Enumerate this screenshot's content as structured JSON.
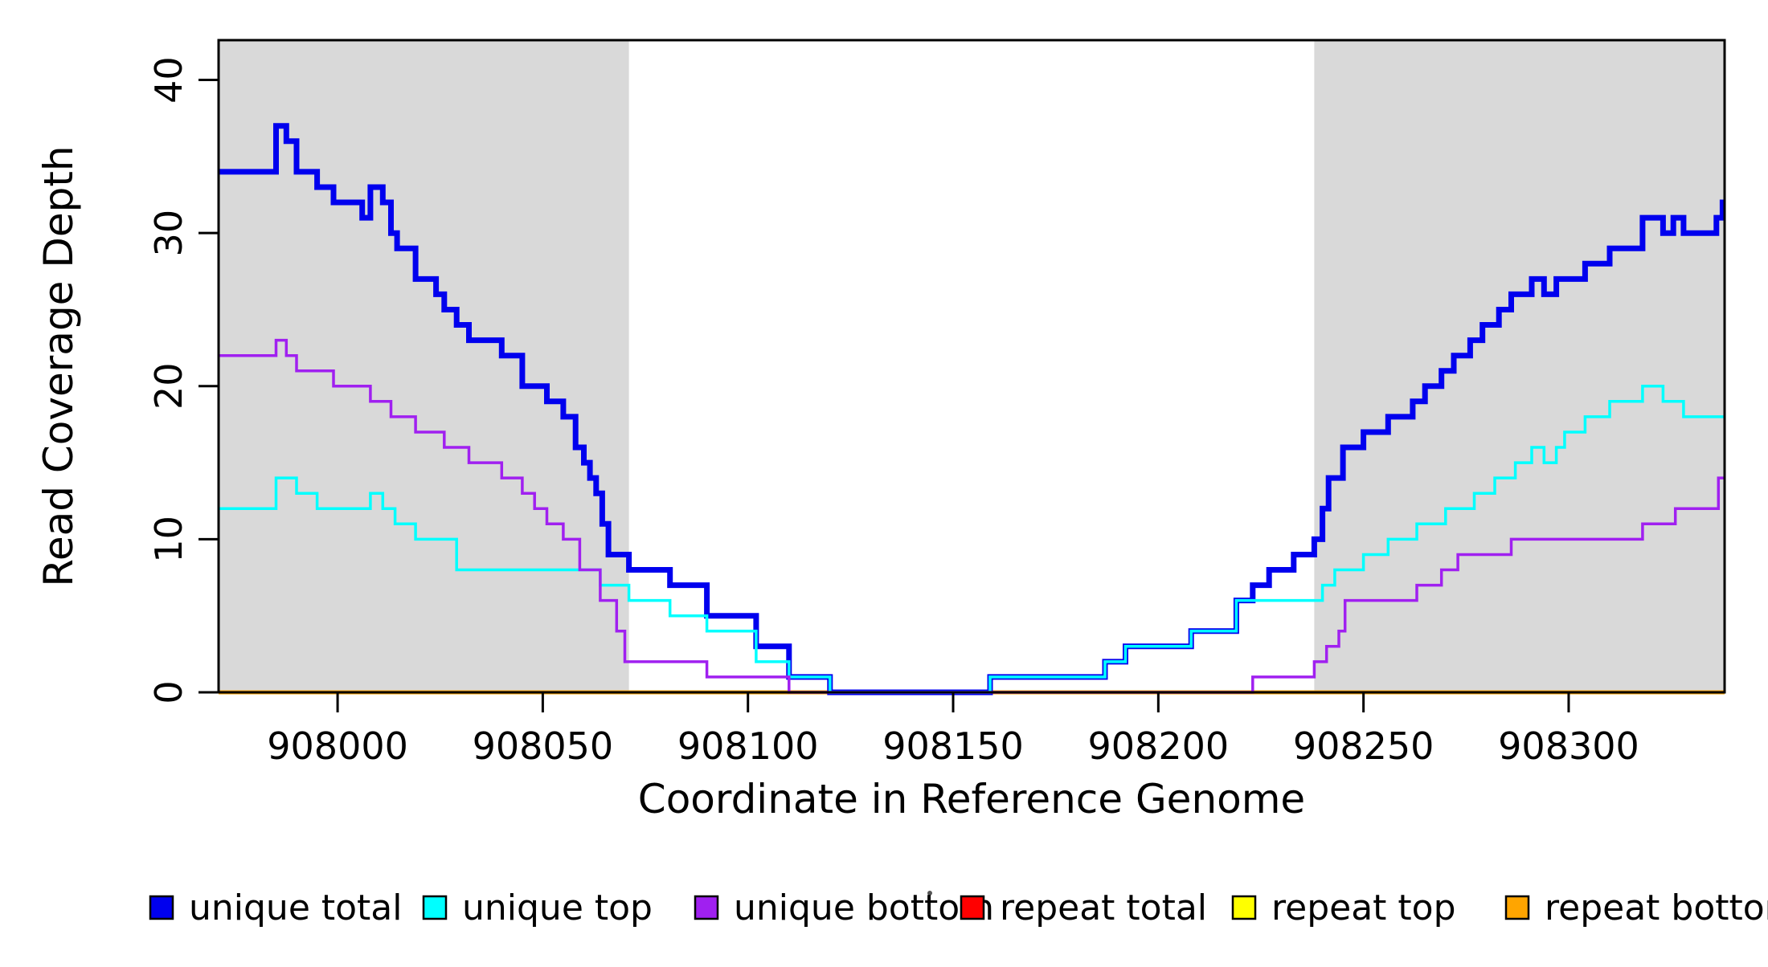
{
  "page": {
    "background": "#FFFFFF",
    "description": "Step plot of read coverage depth across a reference genome window with shaded flanking regions"
  },
  "chart_data": {
    "type": "line",
    "subtype": "step",
    "title": "",
    "xlabel": "Coordinate in Reference Genome",
    "ylabel": "Read Coverage Depth",
    "xlim": [
      907971,
      908338
    ],
    "ylim": [
      0,
      42.6
    ],
    "grid": false,
    "xticks": {
      "values": [
        908000,
        908050,
        908100,
        908150,
        908200,
        908250,
        908300
      ],
      "labels": [
        "908000",
        "908050",
        "908100",
        "908150",
        "908200",
        "908250",
        "908300"
      ]
    },
    "yticks": {
      "values": [
        0,
        10,
        20,
        30,
        40
      ],
      "labels": [
        "0",
        "10",
        "20",
        "30",
        "40"
      ]
    },
    "shaded_regions": [
      {
        "x0": 907971,
        "x1": 908071,
        "color": "#D9D9D9"
      },
      {
        "x0": 908238,
        "x1": 908338,
        "color": "#D9D9D9"
      }
    ],
    "series": [
      {
        "name": "repeat total",
        "color": "#FF0000",
        "line_width": 3,
        "steps": [
          [
            907971,
            0
          ]
        ]
      },
      {
        "name": "repeat top",
        "color": "#FFFF00",
        "line_width": 3,
        "steps": [
          [
            907971,
            0
          ]
        ]
      },
      {
        "name": "repeat bottom",
        "color": "#FFA500",
        "line_width": 5,
        "steps": [
          [
            907971,
            0
          ]
        ]
      },
      {
        "name": "unique total",
        "color": "#0000EE",
        "line_width": 7,
        "steps": [
          [
            907971,
            34
          ],
          [
            907985,
            37
          ],
          [
            907987.5,
            36
          ],
          [
            907990,
            34
          ],
          [
            907995,
            33
          ],
          [
            907999,
            32
          ],
          [
            908006,
            31
          ],
          [
            908008,
            33
          ],
          [
            908011,
            32
          ],
          [
            908013,
            30
          ],
          [
            908014.5,
            29
          ],
          [
            908019,
            27
          ],
          [
            908024,
            26
          ],
          [
            908026,
            25
          ],
          [
            908029,
            24
          ],
          [
            908032,
            23
          ],
          [
            908040,
            22
          ],
          [
            908045,
            20
          ],
          [
            908051,
            19
          ],
          [
            908055,
            18
          ],
          [
            908058,
            16
          ],
          [
            908060,
            15
          ],
          [
            908061.5,
            14
          ],
          [
            908063,
            13
          ],
          [
            908064.5,
            11
          ],
          [
            908066,
            9
          ],
          [
            908071,
            8
          ],
          [
            908081,
            7
          ],
          [
            908090,
            5
          ],
          [
            908102,
            3
          ],
          [
            908110,
            1
          ],
          [
            908120,
            0
          ],
          [
            908159,
            1
          ],
          [
            908187,
            2
          ],
          [
            908192,
            3
          ],
          [
            908208,
            4
          ],
          [
            908219,
            6
          ],
          [
            908223,
            7
          ],
          [
            908227,
            8
          ],
          [
            908233,
            9
          ],
          [
            908238,
            10
          ],
          [
            908240,
            12
          ],
          [
            908241.5,
            14
          ],
          [
            908245,
            16
          ],
          [
            908250,
            17
          ],
          [
            908256,
            18
          ],
          [
            908262,
            19
          ],
          [
            908265,
            20
          ],
          [
            908269,
            21
          ],
          [
            908272,
            22
          ],
          [
            908276,
            23
          ],
          [
            908279,
            24
          ],
          [
            908283,
            25
          ],
          [
            908286,
            26
          ],
          [
            908291,
            27
          ],
          [
            908294,
            26
          ],
          [
            908297,
            27
          ],
          [
            908304,
            28
          ],
          [
            908310,
            29
          ],
          [
            908318,
            31
          ],
          [
            908323,
            30
          ],
          [
            908325.5,
            31
          ],
          [
            908328,
            30
          ],
          [
            908336,
            31
          ],
          [
            908337.5,
            32
          ]
        ]
      },
      {
        "name": "unique top",
        "color": "#00FFFF",
        "line_width": 3.5,
        "steps": [
          [
            907971,
            12
          ],
          [
            907985,
            14
          ],
          [
            907990,
            13
          ],
          [
            907995,
            12
          ],
          [
            908008,
            13
          ],
          [
            908011,
            12
          ],
          [
            908014,
            11
          ],
          [
            908019,
            10
          ],
          [
            908029,
            8
          ],
          [
            908064,
            7
          ],
          [
            908071,
            6
          ],
          [
            908081,
            5
          ],
          [
            908090,
            4
          ],
          [
            908102,
            2
          ],
          [
            908110,
            1
          ],
          [
            908120,
            0
          ],
          [
            908159,
            1
          ],
          [
            908187,
            2
          ],
          [
            908192,
            3
          ],
          [
            908208,
            4
          ],
          [
            908219,
            6
          ],
          [
            908240,
            7
          ],
          [
            908243,
            8
          ],
          [
            908250,
            9
          ],
          [
            908256,
            10
          ],
          [
            908263,
            11
          ],
          [
            908270,
            12
          ],
          [
            908277,
            13
          ],
          [
            908282,
            14
          ],
          [
            908287,
            15
          ],
          [
            908291,
            16
          ],
          [
            908294,
            15
          ],
          [
            908297,
            16
          ],
          [
            908299,
            17
          ],
          [
            908304,
            18
          ],
          [
            908310,
            19
          ],
          [
            908318,
            20
          ],
          [
            908323,
            19
          ],
          [
            908328,
            18
          ]
        ]
      },
      {
        "name": "unique bottom",
        "color": "#A020F0",
        "line_width": 3.5,
        "steps": [
          [
            907971,
            22
          ],
          [
            907985,
            23
          ],
          [
            907987.5,
            22
          ],
          [
            907990,
            21
          ],
          [
            907999,
            20
          ],
          [
            908008,
            19
          ],
          [
            908013,
            18
          ],
          [
            908019,
            17
          ],
          [
            908026,
            16
          ],
          [
            908032,
            15
          ],
          [
            908040,
            14
          ],
          [
            908045,
            13
          ],
          [
            908048,
            12
          ],
          [
            908051,
            11
          ],
          [
            908055,
            10
          ],
          [
            908059,
            8
          ],
          [
            908064,
            6
          ],
          [
            908068,
            4
          ],
          [
            908070,
            2
          ],
          [
            908090,
            1
          ],
          [
            908110,
            0
          ],
          [
            908223,
            1
          ],
          [
            908238,
            2
          ],
          [
            908241,
            3
          ],
          [
            908244,
            4
          ],
          [
            908245.5,
            6
          ],
          [
            908263,
            7
          ],
          [
            908269,
            8
          ],
          [
            908273,
            9
          ],
          [
            908286,
            10
          ],
          [
            908318,
            11
          ],
          [
            908326,
            12
          ],
          [
            908336.5,
            14
          ]
        ]
      }
    ],
    "legend": {
      "position": "bottom",
      "entries": [
        {
          "label": "unique total",
          "color": "#0000EE"
        },
        {
          "label": "unique top",
          "color": "#00FFFF"
        },
        {
          "label": "unique bottom",
          "color": "#A020F0"
        },
        {
          "label": "repeat total",
          "color": "#FF0000"
        },
        {
          "label": "repeat top",
          "color": "#FFFF00"
        },
        {
          "label": "repeat bottom",
          "color": "#FFA500"
        }
      ]
    }
  }
}
